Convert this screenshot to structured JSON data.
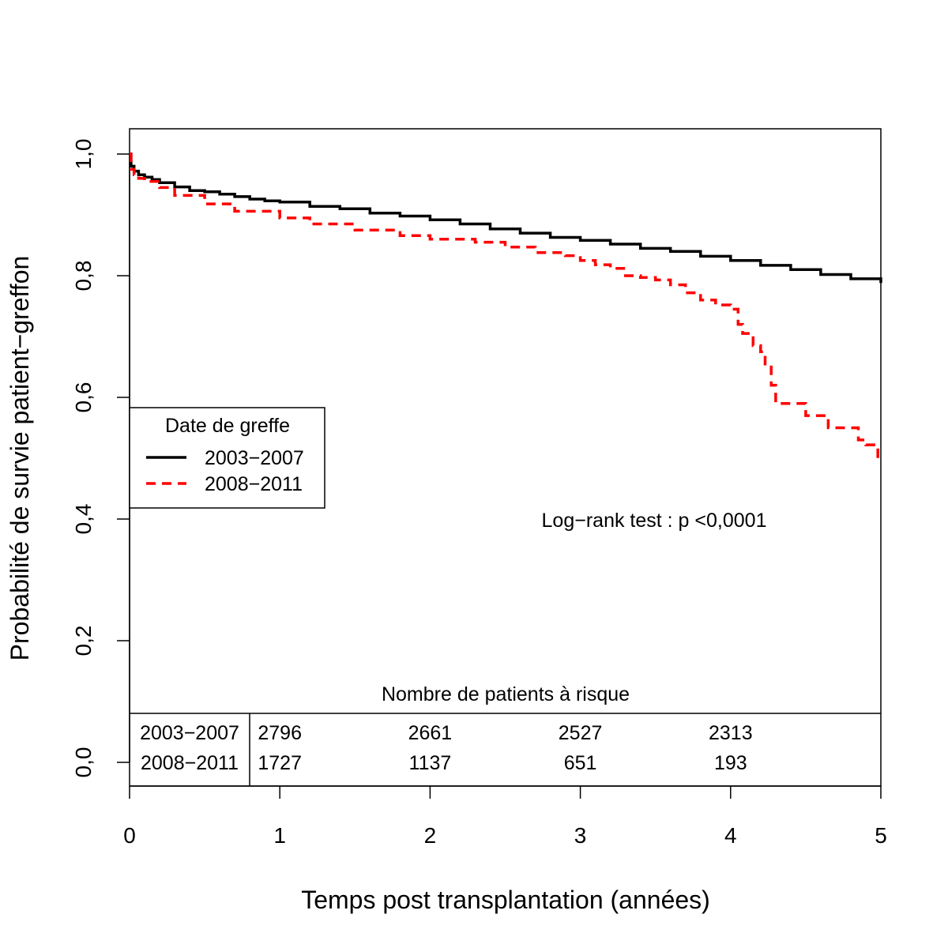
{
  "chart_data": {
    "type": "line",
    "subtype": "kaplan-meier step curve",
    "title": "",
    "xlabel": "Temps post transplantation (années)",
    "ylabel": "Probabilité de survie patient−greffon",
    "xlim": [
      0,
      5
    ],
    "ylim": [
      0,
      1
    ],
    "x_ticks": [
      "0",
      "1",
      "2",
      "3",
      "4",
      "5"
    ],
    "y_ticks": [
      "0,0",
      "0,2",
      "0,4",
      "0,6",
      "0,8",
      "1,0"
    ],
    "grid": false,
    "legend": {
      "title": "Date de greffe",
      "placement": "left",
      "entries": [
        "2003−2007",
        "2008−2011"
      ]
    },
    "annotation": "Log−rank test : p <0,0001",
    "series": [
      {
        "name": "2003−2007",
        "color": "#000000",
        "style": "solid",
        "x": [
          0,
          0.01,
          0.03,
          0.06,
          0.1,
          0.15,
          0.2,
          0.3,
          0.4,
          0.5,
          0.6,
          0.7,
          0.8,
          0.9,
          1.0,
          1.2,
          1.4,
          1.6,
          1.8,
          2.0,
          2.2,
          2.4,
          2.6,
          2.8,
          3.0,
          3.2,
          3.4,
          3.6,
          3.8,
          4.0,
          4.2,
          4.4,
          4.6,
          4.8,
          5.0
        ],
        "y": [
          1.0,
          0.98,
          0.972,
          0.966,
          0.962,
          0.958,
          0.953,
          0.946,
          0.94,
          0.938,
          0.934,
          0.93,
          0.926,
          0.923,
          0.921,
          0.914,
          0.91,
          0.903,
          0.898,
          0.892,
          0.885,
          0.877,
          0.87,
          0.863,
          0.858,
          0.852,
          0.845,
          0.84,
          0.832,
          0.825,
          0.817,
          0.81,
          0.802,
          0.795,
          0.788
        ]
      },
      {
        "name": "2008−2011",
        "color": "#ff0000",
        "style": "dashed",
        "x": [
          0,
          0.01,
          0.03,
          0.06,
          0.1,
          0.2,
          0.3,
          0.5,
          0.7,
          1.0,
          1.2,
          1.5,
          1.8,
          2.0,
          2.3,
          2.5,
          2.7,
          2.9,
          3.0,
          3.1,
          3.2,
          3.28,
          3.3,
          3.4,
          3.5,
          3.6,
          3.7,
          3.8,
          3.9,
          4.0,
          4.05,
          4.08,
          4.15,
          4.2,
          4.23,
          4.27,
          4.3,
          4.35,
          4.4,
          4.5,
          4.55,
          4.65,
          4.8,
          4.85,
          4.9,
          4.95,
          4.98,
          5.0
        ],
        "y": [
          1.0,
          0.975,
          0.966,
          0.96,
          0.955,
          0.945,
          0.932,
          0.918,
          0.906,
          0.895,
          0.885,
          0.875,
          0.866,
          0.86,
          0.855,
          0.847,
          0.838,
          0.833,
          0.825,
          0.818,
          0.812,
          0.812,
          0.8,
          0.797,
          0.793,
          0.785,
          0.772,
          0.76,
          0.752,
          0.745,
          0.72,
          0.705,
          0.685,
          0.675,
          0.65,
          0.62,
          0.59,
          0.59,
          0.59,
          0.57,
          0.57,
          0.55,
          0.55,
          0.53,
          0.522,
          0.522,
          0.5,
          0.495
        ]
      }
    ]
  },
  "risk_table": {
    "title": "Nombre de patients à risque",
    "rows": [
      {
        "label": "2003−2007",
        "values": [
          "2796",
          "2661",
          "2527",
          "2313"
        ]
      },
      {
        "label": "2008−2011",
        "values": [
          "1727",
          "1137",
          "651",
          "193"
        ]
      }
    ]
  }
}
